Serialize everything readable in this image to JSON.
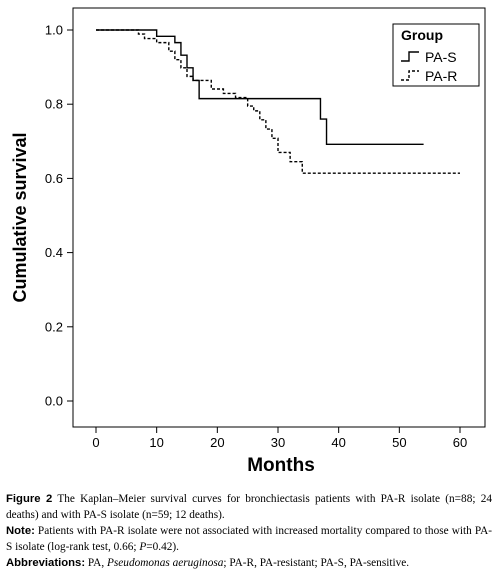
{
  "chart_data": {
    "type": "line",
    "step": true,
    "xlabel": "Months",
    "ylabel": "Cumulative survival",
    "xlim": [
      0,
      60
    ],
    "ylim": [
      0,
      1.0
    ],
    "xticks": [
      0,
      10,
      20,
      30,
      40,
      50,
      60
    ],
    "yticks": [
      0.0,
      0.2,
      0.4,
      0.6,
      0.8,
      1.0
    ],
    "xtick_labels": [
      "0",
      "10",
      "20",
      "30",
      "40",
      "50",
      "60"
    ],
    "ytick_labels": [
      "0.0",
      "0.2",
      "0.4",
      "0.6",
      "0.8",
      "1.0"
    ],
    "grid": false,
    "legend": {
      "title": "Group",
      "position": "top-right"
    },
    "series": [
      {
        "name": "PA-S",
        "style": "solid",
        "color": "#000000",
        "x": [
          0,
          9,
          10,
          13,
          14,
          15,
          16,
          17,
          36,
          37,
          38,
          54
        ],
        "y": [
          1.0,
          1.0,
          0.983,
          0.966,
          0.932,
          0.898,
          0.864,
          0.815,
          0.815,
          0.76,
          0.692,
          0.692
        ]
      },
      {
        "name": "PA-R",
        "style": "dashed",
        "color": "#000000",
        "x": [
          0,
          6,
          7,
          8,
          10,
          12,
          13,
          14,
          15,
          16,
          19,
          21,
          23,
          25,
          26,
          27,
          28,
          29,
          30,
          32,
          34,
          60
        ],
        "y": [
          1.0,
          1.0,
          0.989,
          0.977,
          0.966,
          0.943,
          0.92,
          0.898,
          0.875,
          0.864,
          0.841,
          0.829,
          0.818,
          0.795,
          0.782,
          0.758,
          0.733,
          0.708,
          0.67,
          0.645,
          0.614,
          0.614
        ]
      }
    ]
  },
  "caption": {
    "figure_label": "Figure 2",
    "figure_text": " The Kaplan–Meier survival curves for bronchiectasis patients with PA-R isolate (n=88; 24 deaths) and with PA-S isolate (n=59; 12 deaths).",
    "note_label": "Note:",
    "note_text_1": " Patients with PA-R isolate were not associated with increased mortality compared to those with PA-S isolate (log-rank test, 0.66; ",
    "note_p": "P",
    "note_text_2": "=0.42).",
    "abbrev_label": "Abbreviations:",
    "abbrev_text_1": " PA, ",
    "abbrev_italic": "Pseudomonas aeruginosa",
    "abbrev_text_2": "; PA-R, PA-resistant; PA-S, PA-sensitive."
  }
}
